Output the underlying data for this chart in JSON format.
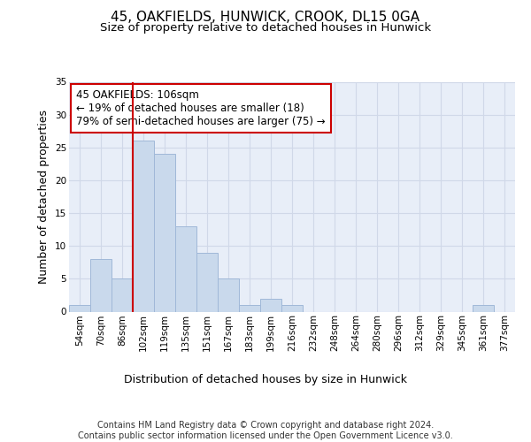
{
  "title": "45, OAKFIELDS, HUNWICK, CROOK, DL15 0GA",
  "subtitle": "Size of property relative to detached houses in Hunwick",
  "xlabel": "Distribution of detached houses by size in Hunwick",
  "ylabel": "Number of detached properties",
  "bin_labels": [
    "54sqm",
    "70sqm",
    "86sqm",
    "102sqm",
    "119sqm",
    "135sqm",
    "151sqm",
    "167sqm",
    "183sqm",
    "199sqm",
    "216sqm",
    "232sqm",
    "248sqm",
    "264sqm",
    "280sqm",
    "296sqm",
    "312sqm",
    "329sqm",
    "345sqm",
    "361sqm",
    "377sqm"
  ],
  "values": [
    1,
    8,
    5,
    26,
    24,
    13,
    9,
    5,
    1,
    2,
    1,
    0,
    0,
    0,
    0,
    0,
    0,
    0,
    0,
    1,
    0
  ],
  "bar_color": "#c9d9ec",
  "bar_edge_color": "#a0b8d8",
  "grid_color": "#d0d8e8",
  "background_color": "#e8eef8",
  "vline_x_index": 3,
  "vline_color": "#cc0000",
  "annotation_box_text": "45 OAKFIELDS: 106sqm\n← 19% of detached houses are smaller (18)\n79% of semi-detached houses are larger (75) →",
  "footer_text": "Contains HM Land Registry data © Crown copyright and database right 2024.\nContains public sector information licensed under the Open Government Licence v3.0.",
  "ylim": [
    0,
    35
  ],
  "yticks": [
    0,
    5,
    10,
    15,
    20,
    25,
    30,
    35
  ],
  "title_fontsize": 11,
  "subtitle_fontsize": 9.5,
  "axis_label_fontsize": 9,
  "tick_fontsize": 7.5,
  "annotation_fontsize": 8.5,
  "footer_fontsize": 7
}
